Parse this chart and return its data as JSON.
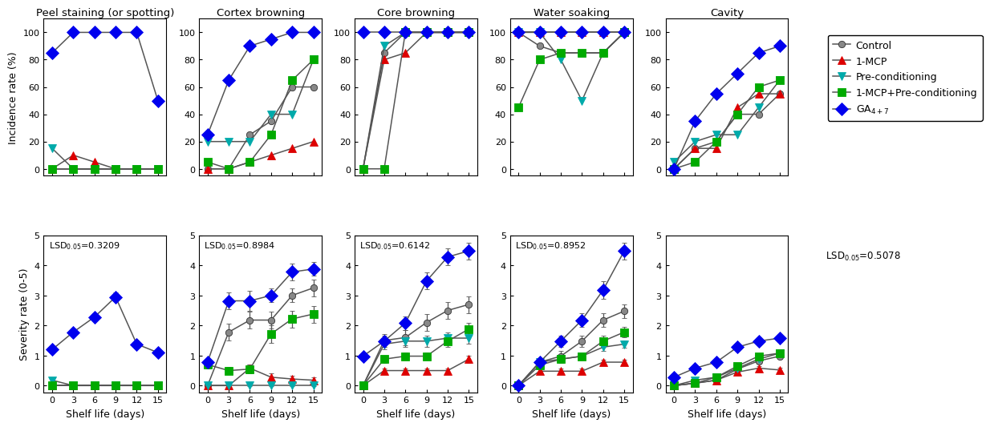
{
  "x": [
    0,
    3,
    6,
    9,
    12,
    15
  ],
  "titles_top": [
    "Peel staining (or spotting)",
    "Cortex browning",
    "Core browning",
    "Water soaking",
    "Cavity"
  ],
  "ylabel_top": "Incidence rate (%)",
  "ylabel_bottom": "Severity rate (0-5)",
  "xlabel": "Shelf life (days)",
  "lsd_labels": [
    "LSD$_{0.05}$=0.3209",
    "LSD$_{0.05}$=0.8984",
    "LSD$_{0.05}$=0.6142",
    "LSD$_{0.05}$=0.8952"
  ],
  "lsd_cavity_sev": "LSD$_{0.05}$=0.5078",
  "legend_labels": [
    "Control",
    "1-MCP",
    "Pre-conditioning",
    "1-MCP+Pre-conditioning",
    "GA$_{4+7}$"
  ],
  "line_color": "#555555",
  "marker_colors": [
    "#888888",
    "#dd0000",
    "#00aaaa",
    "#00aa00",
    "#0000ee"
  ],
  "markers": [
    "o",
    "^",
    "v",
    "s",
    "D"
  ],
  "marker_sizes": [
    6,
    7,
    7,
    7,
    8
  ],
  "incidence": {
    "peel_staining": {
      "control": [
        0,
        0,
        0,
        0,
        0,
        0
      ],
      "mcp": [
        0,
        10,
        5,
        0,
        0,
        0
      ],
      "pre": [
        15,
        0,
        0,
        0,
        0,
        0
      ],
      "mcp_pre": [
        0,
        0,
        0,
        0,
        0,
        0
      ],
      "ga": [
        85,
        100,
        100,
        100,
        100,
        50
      ]
    },
    "cortex_browning": {
      "control": [
        0,
        0,
        25,
        35,
        60,
        60
      ],
      "mcp": [
        0,
        0,
        5,
        10,
        15,
        20
      ],
      "pre": [
        20,
        20,
        20,
        40,
        40,
        80
      ],
      "mcp_pre": [
        5,
        0,
        5,
        25,
        65,
        80
      ],
      "ga": [
        25,
        65,
        90,
        95,
        100,
        100
      ]
    },
    "core_browning": {
      "control": [
        0,
        85,
        100,
        100,
        100,
        100
      ],
      "mcp": [
        0,
        80,
        85,
        100,
        100,
        100
      ],
      "pre": [
        0,
        90,
        100,
        100,
        100,
        100
      ],
      "mcp_pre": [
        0,
        0,
        100,
        100,
        100,
        100
      ],
      "ga": [
        100,
        100,
        100,
        100,
        100,
        100
      ]
    },
    "water_soaking": {
      "control": [
        100,
        90,
        85,
        85,
        85,
        100
      ],
      "mcp": [
        100,
        100,
        100,
        100,
        100,
        100
      ],
      "pre": [
        100,
        100,
        80,
        50,
        85,
        100
      ],
      "mcp_pre": [
        45,
        80,
        85,
        85,
        85,
        100
      ],
      "ga": [
        100,
        100,
        100,
        100,
        100,
        100
      ]
    },
    "cavity": {
      "control": [
        0,
        15,
        20,
        40,
        40,
        55
      ],
      "mcp": [
        0,
        15,
        15,
        45,
        55,
        55
      ],
      "pre": [
        5,
        20,
        25,
        25,
        45,
        65
      ],
      "mcp_pre": [
        0,
        5,
        20,
        40,
        60,
        65
      ],
      "ga": [
        0,
        35,
        55,
        70,
        85,
        90
      ]
    }
  },
  "severity": {
    "peel_staining": {
      "control": [
        0,
        0,
        0,
        0,
        0,
        0
      ],
      "mcp": [
        0,
        0,
        0,
        0,
        0,
        0
      ],
      "pre": [
        0.18,
        0,
        0,
        0,
        0,
        0
      ],
      "mcp_pre": [
        0,
        0,
        0,
        0,
        0,
        0
      ],
      "ga": [
        1.2,
        1.78,
        2.28,
        2.95,
        1.38,
        1.1
      ],
      "ga_err": [
        0.1,
        0.12,
        0.12,
        0.15,
        0.12,
        0.1
      ]
    },
    "cortex_browning": {
      "control": [
        0,
        1.78,
        2.18,
        2.18,
        3.0,
        3.25
      ],
      "control_err": [
        0.1,
        0.28,
        0.28,
        0.28,
        0.22,
        0.28
      ],
      "mcp": [
        0,
        0,
        0.58,
        0.28,
        0.22,
        0.18
      ],
      "mcp_err": [
        0.05,
        0.05,
        0.12,
        0.12,
        0.1,
        0.1
      ],
      "pre": [
        0,
        0,
        0,
        0,
        0,
        0
      ],
      "pre_err": [
        0.03,
        0.03,
        0.03,
        0.03,
        0.03,
        0.03
      ],
      "mcp_pre": [
        0.7,
        0.5,
        0.55,
        1.72,
        2.22,
        2.38
      ],
      "mcp_pre_err": [
        0.12,
        0.12,
        0.15,
        0.3,
        0.28,
        0.28
      ],
      "ga": [
        0.78,
        2.82,
        2.82,
        3.0,
        3.78,
        3.88
      ],
      "ga_err": [
        0.12,
        0.28,
        0.32,
        0.22,
        0.28,
        0.22
      ]
    },
    "core_browning": {
      "control": [
        0,
        1.5,
        1.6,
        2.1,
        2.5,
        2.7
      ],
      "control_err": [
        0.08,
        0.22,
        0.25,
        0.28,
        0.28,
        0.28
      ],
      "mcp": [
        0,
        0.5,
        0.5,
        0.5,
        0.5,
        0.88
      ],
      "mcp_err": [
        0.03,
        0.08,
        0.08,
        0.08,
        0.08,
        0.12
      ],
      "pre": [
        0,
        1.38,
        1.48,
        1.48,
        1.58,
        1.58
      ],
      "pre_err": [
        0.03,
        0.18,
        0.18,
        0.18,
        0.18,
        0.18
      ],
      "mcp_pre": [
        0,
        0.88,
        0.98,
        0.98,
        1.48,
        1.88
      ],
      "mcp_pre_err": [
        0.03,
        0.12,
        0.12,
        0.12,
        0.18,
        0.22
      ],
      "ga": [
        0.98,
        1.48,
        2.08,
        3.48,
        4.28,
        4.48
      ],
      "ga_err": [
        0.08,
        0.18,
        0.22,
        0.28,
        0.28,
        0.28
      ]
    },
    "water_soaking": {
      "control": [
        0,
        0.78,
        0.98,
        1.48,
        2.18,
        2.48
      ],
      "control_err": [
        0.08,
        0.12,
        0.18,
        0.18,
        0.22,
        0.22
      ],
      "mcp": [
        0,
        0.48,
        0.48,
        0.48,
        0.78,
        0.78
      ],
      "mcp_err": [
        0.03,
        0.08,
        0.08,
        0.08,
        0.08,
        0.08
      ],
      "pre": [
        0,
        0.78,
        0.88,
        0.98,
        1.28,
        1.38
      ],
      "pre_err": [
        0.03,
        0.12,
        0.12,
        0.12,
        0.12,
        0.12
      ],
      "mcp_pre": [
        0,
        0.68,
        0.88,
        0.98,
        1.48,
        1.78
      ],
      "mcp_pre_err": [
        0.03,
        0.1,
        0.12,
        0.12,
        0.18,
        0.18
      ],
      "ga": [
        0,
        0.78,
        1.48,
        2.18,
        3.18,
        4.48
      ],
      "ga_err": [
        0.03,
        0.12,
        0.18,
        0.22,
        0.28,
        0.28
      ]
    },
    "cavity": {
      "control": [
        0,
        0.08,
        0.18,
        0.55,
        0.82,
        0.98
      ],
      "control_err": [
        0.02,
        0.04,
        0.04,
        0.08,
        0.08,
        0.08
      ],
      "mcp": [
        0,
        0.08,
        0.18,
        0.45,
        0.58,
        0.52
      ],
      "mcp_err": [
        0.02,
        0.04,
        0.04,
        0.08,
        0.08,
        0.08
      ],
      "pre": [
        0,
        0.18,
        0.28,
        0.58,
        0.88,
        1.08
      ],
      "pre_err": [
        0.02,
        0.04,
        0.04,
        0.08,
        0.08,
        0.08
      ],
      "mcp_pre": [
        0,
        0.08,
        0.28,
        0.65,
        0.98,
        1.08
      ],
      "mcp_pre_err": [
        0.02,
        0.04,
        0.04,
        0.08,
        0.08,
        0.08
      ],
      "ga": [
        0.28,
        0.58,
        0.78,
        1.28,
        1.48,
        1.58
      ],
      "ga_err": [
        0.04,
        0.08,
        0.08,
        0.12,
        0.12,
        0.12
      ]
    }
  }
}
